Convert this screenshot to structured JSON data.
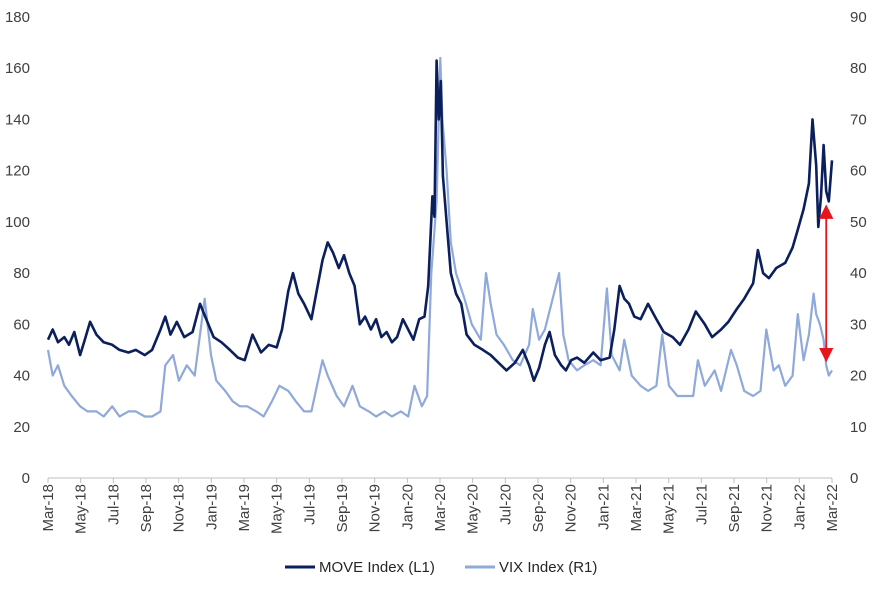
{
  "chart_data": {
    "type": "line",
    "title": "",
    "xlabel": "",
    "ylabel": "",
    "ylabel_right": "",
    "ylim_left": [
      0,
      180
    ],
    "ylim_right": [
      0,
      90
    ],
    "yticks_left": [
      "0",
      "20",
      "40",
      "60",
      "80",
      "100",
      "120",
      "140",
      "160",
      "180"
    ],
    "yticks_right": [
      "0",
      "10",
      "20",
      "30",
      "40",
      "50",
      "60",
      "70",
      "80",
      "90"
    ],
    "x_start": "2018-03-01",
    "x_end": "2022-03-31",
    "x_ticks": [
      "Mar-18",
      "May-18",
      "Jul-18",
      "Sep-18",
      "Nov-18",
      "Jan-19",
      "Mar-19",
      "May-19",
      "Jul-19",
      "Sep-19",
      "Nov-19",
      "Jan-20",
      "Mar-20",
      "May-20",
      "Jul-20",
      "Sep-20",
      "Nov-20",
      "Jan-21",
      "Mar-21",
      "May-21",
      "Jul-21",
      "Sep-21",
      "Nov-21",
      "Jan-22",
      "Mar-22"
    ],
    "grid": false,
    "legend_position": "bottom",
    "series": [
      {
        "name": "MOVE Index  (L1)",
        "axis": "left",
        "color": "#0b1f5c",
        "points": [
          [
            "2018-03-01",
            54
          ],
          [
            "2018-03-10",
            58
          ],
          [
            "2018-03-20",
            53
          ],
          [
            "2018-04-01",
            55
          ],
          [
            "2018-04-10",
            52
          ],
          [
            "2018-04-20",
            57
          ],
          [
            "2018-05-01",
            48
          ],
          [
            "2018-05-10",
            54
          ],
          [
            "2018-05-20",
            61
          ],
          [
            "2018-06-01",
            56
          ],
          [
            "2018-06-15",
            53
          ],
          [
            "2018-07-01",
            52
          ],
          [
            "2018-07-15",
            50
          ],
          [
            "2018-08-01",
            49
          ],
          [
            "2018-08-15",
            50
          ],
          [
            "2018-09-01",
            48
          ],
          [
            "2018-09-15",
            50
          ],
          [
            "2018-10-01",
            58
          ],
          [
            "2018-10-10",
            63
          ],
          [
            "2018-10-20",
            56
          ],
          [
            "2018-11-01",
            61
          ],
          [
            "2018-11-15",
            55
          ],
          [
            "2018-12-01",
            57
          ],
          [
            "2018-12-15",
            68
          ],
          [
            "2018-12-25",
            63
          ],
          [
            "2019-01-10",
            55
          ],
          [
            "2019-01-25",
            53
          ],
          [
            "2019-02-10",
            50
          ],
          [
            "2019-02-25",
            47
          ],
          [
            "2019-03-10",
            46
          ],
          [
            "2019-03-25",
            56
          ],
          [
            "2019-04-10",
            49
          ],
          [
            "2019-04-25",
            52
          ],
          [
            "2019-05-10",
            51
          ],
          [
            "2019-05-20",
            58
          ],
          [
            "2019-06-01",
            73
          ],
          [
            "2019-06-10",
            80
          ],
          [
            "2019-06-20",
            72
          ],
          [
            "2019-07-01",
            68
          ],
          [
            "2019-07-15",
            62
          ],
          [
            "2019-07-25",
            73
          ],
          [
            "2019-08-05",
            85
          ],
          [
            "2019-08-15",
            92
          ],
          [
            "2019-08-25",
            88
          ],
          [
            "2019-09-05",
            82
          ],
          [
            "2019-09-15",
            87
          ],
          [
            "2019-09-25",
            80
          ],
          [
            "2019-10-05",
            75
          ],
          [
            "2019-10-15",
            60
          ],
          [
            "2019-10-25",
            63
          ],
          [
            "2019-11-05",
            58
          ],
          [
            "2019-11-15",
            62
          ],
          [
            "2019-11-25",
            55
          ],
          [
            "2019-12-05",
            57
          ],
          [
            "2019-12-15",
            53
          ],
          [
            "2019-12-25",
            55
          ],
          [
            "2020-01-05",
            62
          ],
          [
            "2020-01-15",
            58
          ],
          [
            "2020-01-25",
            54
          ],
          [
            "2020-02-05",
            62
          ],
          [
            "2020-02-15",
            63
          ],
          [
            "2020-02-22",
            75
          ],
          [
            "2020-03-01",
            110
          ],
          [
            "2020-03-05",
            102
          ],
          [
            "2020-03-09",
            163
          ],
          [
            "2020-03-13",
            140
          ],
          [
            "2020-03-17",
            155
          ],
          [
            "2020-03-21",
            118
          ],
          [
            "2020-03-28",
            100
          ],
          [
            "2020-04-05",
            80
          ],
          [
            "2020-04-15",
            72
          ],
          [
            "2020-04-25",
            68
          ],
          [
            "2020-05-05",
            56
          ],
          [
            "2020-05-20",
            52
          ],
          [
            "2020-06-05",
            50
          ],
          [
            "2020-06-20",
            48
          ],
          [
            "2020-07-05",
            45
          ],
          [
            "2020-07-20",
            42
          ],
          [
            "2020-08-05",
            45
          ],
          [
            "2020-08-20",
            50
          ],
          [
            "2020-09-01",
            44
          ],
          [
            "2020-09-10",
            38
          ],
          [
            "2020-09-20",
            43
          ],
          [
            "2020-10-01",
            52
          ],
          [
            "2020-10-10",
            57
          ],
          [
            "2020-10-20",
            48
          ],
          [
            "2020-11-01",
            44
          ],
          [
            "2020-11-10",
            42
          ],
          [
            "2020-11-20",
            46
          ],
          [
            "2020-12-01",
            47
          ],
          [
            "2020-12-15",
            45
          ],
          [
            "2021-01-01",
            49
          ],
          [
            "2021-01-15",
            46
          ],
          [
            "2021-02-01",
            47
          ],
          [
            "2021-02-10",
            58
          ],
          [
            "2021-02-20",
            75
          ],
          [
            "2021-03-01",
            70
          ],
          [
            "2021-03-10",
            68
          ],
          [
            "2021-03-20",
            63
          ],
          [
            "2021-04-01",
            62
          ],
          [
            "2021-04-15",
            68
          ],
          [
            "2021-05-01",
            62
          ],
          [
            "2021-05-15",
            57
          ],
          [
            "2021-06-01",
            55
          ],
          [
            "2021-06-15",
            52
          ],
          [
            "2021-07-01",
            58
          ],
          [
            "2021-07-15",
            65
          ],
          [
            "2021-08-01",
            60
          ],
          [
            "2021-08-15",
            55
          ],
          [
            "2021-09-01",
            58
          ],
          [
            "2021-09-15",
            61
          ],
          [
            "2021-10-01",
            66
          ],
          [
            "2021-10-15",
            70
          ],
          [
            "2021-11-01",
            76
          ],
          [
            "2021-11-10",
            89
          ],
          [
            "2021-11-20",
            80
          ],
          [
            "2021-12-01",
            78
          ],
          [
            "2021-12-15",
            82
          ],
          [
            "2022-01-01",
            84
          ],
          [
            "2022-01-15",
            90
          ],
          [
            "2022-01-25",
            97
          ],
          [
            "2022-02-05",
            105
          ],
          [
            "2022-02-15",
            115
          ],
          [
            "2022-02-22",
            140
          ],
          [
            "2022-03-01",
            122
          ],
          [
            "2022-03-05",
            98
          ],
          [
            "2022-03-10",
            110
          ],
          [
            "2022-03-15",
            130
          ],
          [
            "2022-03-20",
            112
          ],
          [
            "2022-03-25",
            108
          ],
          [
            "2022-03-31",
            124
          ]
        ]
      },
      {
        "name": "VIX Index  (R1)",
        "axis": "right",
        "color": "#8fa9da",
        "points": [
          [
            "2018-03-01",
            25
          ],
          [
            "2018-03-10",
            20
          ],
          [
            "2018-03-20",
            22
          ],
          [
            "2018-04-01",
            18
          ],
          [
            "2018-04-15",
            16
          ],
          [
            "2018-05-01",
            14
          ],
          [
            "2018-05-15",
            13
          ],
          [
            "2018-06-01",
            13
          ],
          [
            "2018-06-15",
            12
          ],
          [
            "2018-07-01",
            14
          ],
          [
            "2018-07-15",
            12
          ],
          [
            "2018-08-01",
            13
          ],
          [
            "2018-08-15",
            13
          ],
          [
            "2018-09-01",
            12
          ],
          [
            "2018-09-15",
            12
          ],
          [
            "2018-10-01",
            13
          ],
          [
            "2018-10-10",
            22
          ],
          [
            "2018-10-25",
            24
          ],
          [
            "2018-11-05",
            19
          ],
          [
            "2018-11-20",
            22
          ],
          [
            "2018-12-05",
            20
          ],
          [
            "2018-12-15",
            28
          ],
          [
            "2018-12-24",
            35
          ],
          [
            "2019-01-05",
            24
          ],
          [
            "2019-01-15",
            19
          ],
          [
            "2019-02-01",
            17
          ],
          [
            "2019-02-15",
            15
          ],
          [
            "2019-03-01",
            14
          ],
          [
            "2019-03-15",
            14
          ],
          [
            "2019-04-01",
            13
          ],
          [
            "2019-04-15",
            12
          ],
          [
            "2019-05-01",
            15
          ],
          [
            "2019-05-15",
            18
          ],
          [
            "2019-06-01",
            17
          ],
          [
            "2019-06-15",
            15
          ],
          [
            "2019-07-01",
            13
          ],
          [
            "2019-07-15",
            13
          ],
          [
            "2019-08-05",
            23
          ],
          [
            "2019-08-15",
            20
          ],
          [
            "2019-09-01",
            16
          ],
          [
            "2019-09-15",
            14
          ],
          [
            "2019-10-01",
            18
          ],
          [
            "2019-10-15",
            14
          ],
          [
            "2019-11-01",
            13
          ],
          [
            "2019-11-15",
            12
          ],
          [
            "2019-12-01",
            13
          ],
          [
            "2019-12-15",
            12
          ],
          [
            "2020-01-01",
            13
          ],
          [
            "2020-01-15",
            12
          ],
          [
            "2020-01-27",
            18
          ],
          [
            "2020-02-10",
            14
          ],
          [
            "2020-02-20",
            16
          ],
          [
            "2020-02-28",
            40
          ],
          [
            "2020-03-09",
            54
          ],
          [
            "2020-03-16",
            82
          ],
          [
            "2020-03-20",
            70
          ],
          [
            "2020-03-28",
            60
          ],
          [
            "2020-04-05",
            46
          ],
          [
            "2020-04-15",
            40
          ],
          [
            "2020-05-01",
            35
          ],
          [
            "2020-05-15",
            30
          ],
          [
            "2020-06-01",
            27
          ],
          [
            "2020-06-11",
            40
          ],
          [
            "2020-06-20",
            34
          ],
          [
            "2020-07-01",
            28
          ],
          [
            "2020-07-15",
            26
          ],
          [
            "2020-08-01",
            23
          ],
          [
            "2020-08-15",
            22
          ],
          [
            "2020-09-01",
            26
          ],
          [
            "2020-09-08",
            33
          ],
          [
            "2020-09-20",
            27
          ],
          [
            "2020-10-01",
            29
          ],
          [
            "2020-10-28",
            40
          ],
          [
            "2020-11-05",
            28
          ],
          [
            "2020-11-15",
            23
          ],
          [
            "2020-12-01",
            21
          ],
          [
            "2020-12-15",
            22
          ],
          [
            "2021-01-01",
            23
          ],
          [
            "2021-01-15",
            22
          ],
          [
            "2021-01-27",
            37
          ],
          [
            "2021-02-05",
            24
          ],
          [
            "2021-02-20",
            21
          ],
          [
            "2021-03-01",
            27
          ],
          [
            "2021-03-15",
            20
          ],
          [
            "2021-04-01",
            18
          ],
          [
            "2021-04-15",
            17
          ],
          [
            "2021-05-01",
            18
          ],
          [
            "2021-05-12",
            28
          ],
          [
            "2021-05-25",
            18
          ],
          [
            "2021-06-10",
            16
          ],
          [
            "2021-06-25",
            16
          ],
          [
            "2021-07-10",
            16
          ],
          [
            "2021-07-19",
            23
          ],
          [
            "2021-08-01",
            18
          ],
          [
            "2021-08-20",
            21
          ],
          [
            "2021-09-01",
            17
          ],
          [
            "2021-09-20",
            25
          ],
          [
            "2021-10-01",
            22
          ],
          [
            "2021-10-15",
            17
          ],
          [
            "2021-11-01",
            16
          ],
          [
            "2021-11-15",
            17
          ],
          [
            "2021-11-26",
            29
          ],
          [
            "2021-12-10",
            21
          ],
          [
            "2021-12-20",
            22
          ],
          [
            "2022-01-01",
            18
          ],
          [
            "2022-01-15",
            20
          ],
          [
            "2022-01-25",
            32
          ],
          [
            "2022-02-05",
            23
          ],
          [
            "2022-02-15",
            28
          ],
          [
            "2022-02-24",
            36
          ],
          [
            "2022-03-01",
            32
          ],
          [
            "2022-03-08",
            30
          ],
          [
            "2022-03-15",
            27
          ],
          [
            "2022-03-20",
            22
          ],
          [
            "2022-03-25",
            20
          ],
          [
            "2022-03-31",
            21
          ]
        ]
      }
    ],
    "annotations": [
      {
        "type": "double-arrow",
        "color": "#e8141c",
        "date": "2022-03-20",
        "from_left_value": 104,
        "to_left_value": 48
      }
    ]
  }
}
